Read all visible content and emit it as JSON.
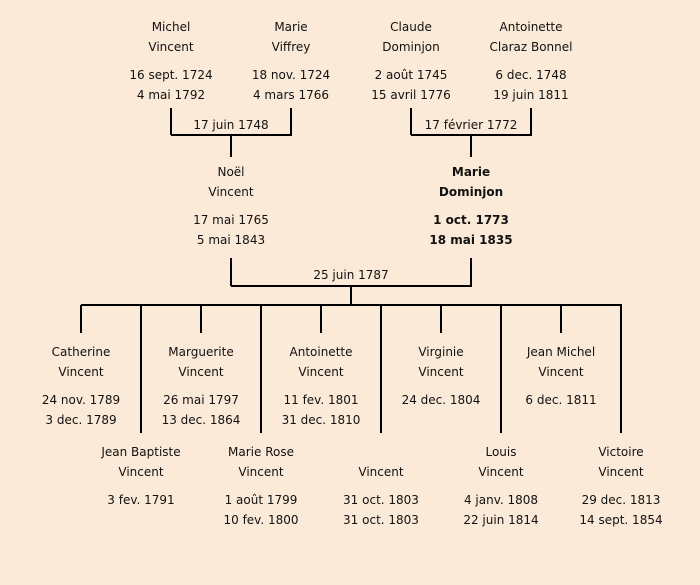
{
  "grandparents": [
    {
      "first": "Michel",
      "last": "Vincent",
      "birth": "16 sept. 1724",
      "death": "4 mai 1792"
    },
    {
      "first": "Marie",
      "last": "Viffrey",
      "birth": "18 nov. 1724",
      "death": "4 mars 1766"
    },
    {
      "first": "Claude",
      "last": "Dominjon",
      "birth": "2 août 1745",
      "death": "15 avril 1776"
    },
    {
      "first": "Antoinette",
      "last": "Claraz Bonnel",
      "birth": "6 dec. 1748",
      "death": "19 juin 1811"
    }
  ],
  "grandparent_marriages": [
    "17 juin 1748",
    "17 février 1772"
  ],
  "parents": [
    {
      "first": "Noël",
      "last": "Vincent",
      "birth": "17 mai 1765",
      "death": "5 mai 1843"
    },
    {
      "first": "Marie",
      "last": "Dominjon",
      "birth": "1 oct. 1773",
      "death": "18 mai 1835",
      "highlighted": true
    }
  ],
  "parent_marriage": "25 juin 1787",
  "children": [
    {
      "first": "Catherine",
      "last": "Vincent",
      "birth": "24 nov. 1789",
      "death": "3 dec. 1789"
    },
    {
      "first": "Jean Baptiste",
      "last": "Vincent",
      "birth": "3 fev. 1791",
      "death": ""
    },
    {
      "first": "Marguerite",
      "last": "Vincent",
      "birth": "26 mai 1797",
      "death": "13 dec. 1864"
    },
    {
      "first": "Marie Rose",
      "last": "Vincent",
      "birth": "1 août 1799",
      "death": "10 fev. 1800"
    },
    {
      "first": "Antoinette",
      "last": "Vincent",
      "birth": "11 fev. 1801",
      "death": "31 dec. 1810"
    },
    {
      "first": "",
      "last": "Vincent",
      "birth": "31 oct. 1803",
      "death": "31 oct. 1803"
    },
    {
      "first": "Virginie",
      "last": "Vincent",
      "birth": "24 dec. 1804",
      "death": ""
    },
    {
      "first": "Louis",
      "last": "Vincent",
      "birth": "4 janv. 1808",
      "death": "22 juin 1814"
    },
    {
      "first": "Jean Michel",
      "last": "Vincent",
      "birth": "6 dec. 1811",
      "death": ""
    },
    {
      "first": "Victoire",
      "last": "Vincent",
      "birth": "29 dec. 1813",
      "death": "14 sept. 1854"
    }
  ],
  "colors": {
    "background": "#fcead8",
    "lines": "#000000"
  }
}
